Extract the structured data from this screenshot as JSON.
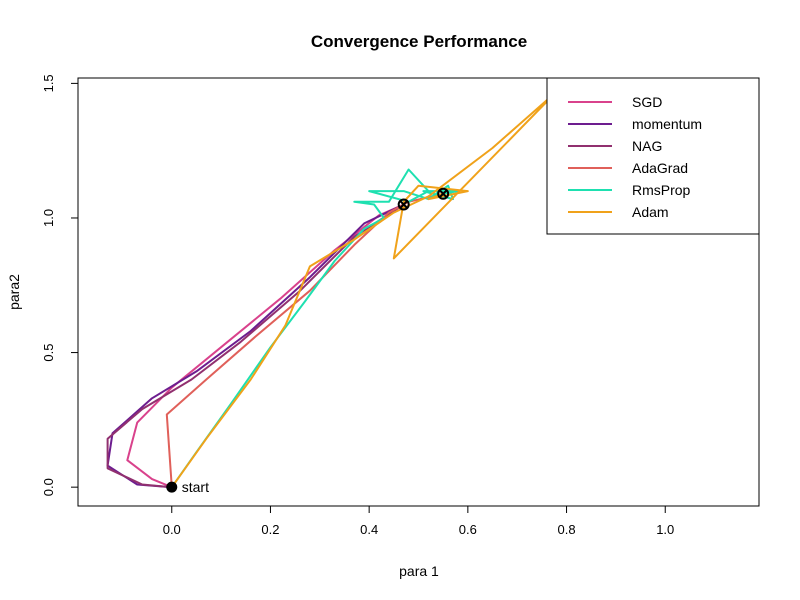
{
  "chart_data": {
    "type": "line",
    "title": "Convergence Performance",
    "xlabel": "para 1",
    "ylabel": "para2",
    "xlim": [
      -0.19,
      1.19
    ],
    "ylim": [
      -0.07,
      1.52
    ],
    "xticks": [
      0.0,
      0.2,
      0.4,
      0.6,
      0.8,
      1.0
    ],
    "xtick_labels": [
      "0.0",
      "0.2",
      "0.4",
      "0.6",
      "0.8",
      "1.0"
    ],
    "yticks": [
      0.0,
      0.5,
      1.0,
      1.5
    ],
    "ytick_labels": [
      "0.0",
      "0.5",
      "1.0",
      "1.5"
    ],
    "legend_position": "top-right",
    "start_point": {
      "x": 0.0,
      "y": 0.0,
      "label": "start"
    },
    "series": [
      {
        "name": "SGD",
        "color": "#d9428c",
        "points": [
          [
            0.0,
            0.0
          ],
          [
            -0.04,
            0.03
          ],
          [
            -0.09,
            0.1
          ],
          [
            -0.07,
            0.24
          ],
          [
            0.0,
            0.37
          ],
          [
            0.1,
            0.52
          ],
          [
            0.22,
            0.7
          ],
          [
            0.33,
            0.88
          ],
          [
            0.42,
            1.01
          ],
          [
            0.47,
            1.05
          ]
        ]
      },
      {
        "name": "momentum",
        "color": "#6d1d8f",
        "points": [
          [
            0.0,
            0.0
          ],
          [
            -0.07,
            0.01
          ],
          [
            -0.13,
            0.08
          ],
          [
            -0.12,
            0.2
          ],
          [
            -0.04,
            0.33
          ],
          [
            0.05,
            0.43
          ],
          [
            0.16,
            0.58
          ],
          [
            0.28,
            0.78
          ],
          [
            0.39,
            0.98
          ],
          [
            0.47,
            1.05
          ]
        ]
      },
      {
        "name": "NAG",
        "color": "#91306f",
        "points": [
          [
            0.0,
            0.0
          ],
          [
            -0.06,
            0.01
          ],
          [
            -0.13,
            0.07
          ],
          [
            -0.13,
            0.18
          ],
          [
            -0.06,
            0.29
          ],
          [
            0.04,
            0.4
          ],
          [
            0.14,
            0.54
          ],
          [
            0.26,
            0.73
          ],
          [
            0.37,
            0.93
          ],
          [
            0.47,
            1.05
          ]
        ]
      },
      {
        "name": "AdaGrad",
        "color": "#e0605a",
        "points": [
          [
            0.0,
            0.0
          ],
          [
            -0.01,
            0.27
          ],
          [
            0.07,
            0.4
          ],
          [
            0.17,
            0.56
          ],
          [
            0.28,
            0.73
          ],
          [
            0.37,
            0.9
          ],
          [
            0.44,
            1.02
          ],
          [
            0.48,
            1.06
          ],
          [
            0.55,
            1.09
          ]
        ]
      },
      {
        "name": "RmsProp",
        "color": "#1ee0b0",
        "points": [
          [
            0.0,
            0.0
          ],
          [
            0.05,
            0.13
          ],
          [
            0.12,
            0.31
          ],
          [
            0.2,
            0.52
          ],
          [
            0.27,
            0.69
          ],
          [
            0.33,
            0.84
          ],
          [
            0.39,
            0.96
          ],
          [
            0.43,
            1.0
          ],
          [
            0.41,
            1.05
          ],
          [
            0.37,
            1.06
          ],
          [
            0.44,
            1.06
          ],
          [
            0.48,
            1.18
          ],
          [
            0.52,
            1.1
          ],
          [
            0.48,
            1.06
          ],
          [
            0.4,
            1.1
          ],
          [
            0.47,
            1.1
          ],
          [
            0.52,
            1.07
          ],
          [
            0.56,
            1.12
          ],
          [
            0.57,
            1.07
          ],
          [
            0.51,
            1.1
          ],
          [
            0.58,
            1.1
          ],
          [
            0.55,
            1.09
          ]
        ]
      },
      {
        "name": "Adam",
        "color": "#f0a21a",
        "points": [
          [
            0.0,
            0.0
          ],
          [
            0.07,
            0.18
          ],
          [
            0.16,
            0.4
          ],
          [
            0.23,
            0.6
          ],
          [
            0.28,
            0.82
          ],
          [
            0.37,
            0.92
          ],
          [
            0.45,
            1.02
          ],
          [
            0.52,
            1.08
          ],
          [
            0.65,
            1.26
          ],
          [
            0.78,
            1.47
          ],
          [
            0.45,
            0.85
          ],
          [
            0.47,
            1.06
          ],
          [
            0.5,
            1.12
          ],
          [
            0.6,
            1.1
          ],
          [
            0.52,
            1.07
          ],
          [
            0.55,
            1.09
          ]
        ]
      }
    ],
    "optima": [
      {
        "x": 0.47,
        "y": 1.05
      },
      {
        "x": 0.55,
        "y": 1.09
      }
    ]
  }
}
